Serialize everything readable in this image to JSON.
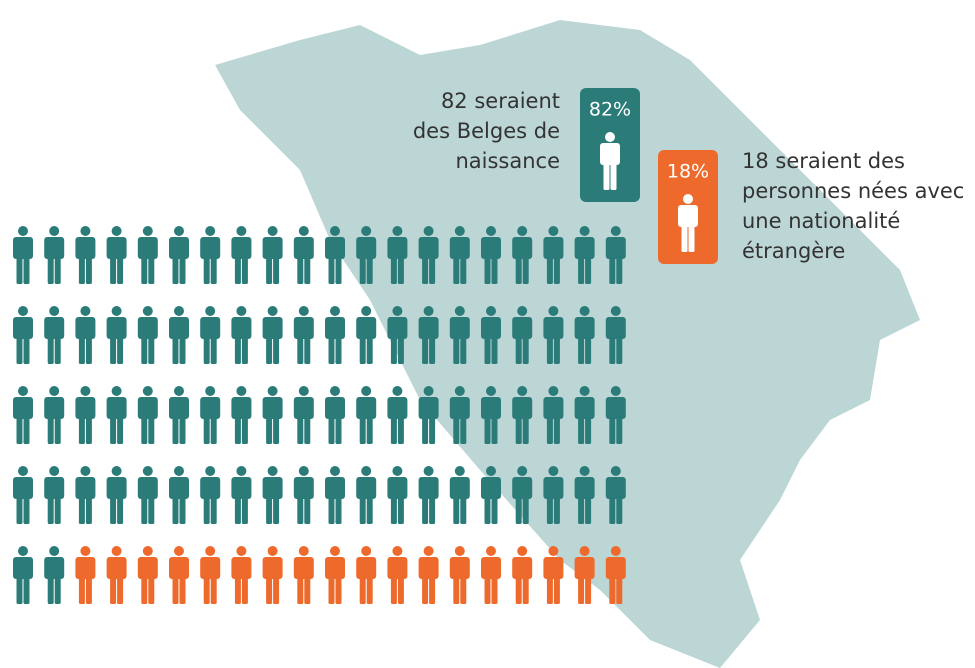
{
  "chart_data": {
    "type": "pictogram",
    "categories": [
      "82 seraient des Belges de naissance",
      "18 seraient des personnes nées avec une nationalité étrangère"
    ],
    "values": [
      82,
      18
    ],
    "value_labels": [
      "82%",
      "18%"
    ],
    "colors": [
      "#2b7c78",
      "#ee6a2c"
    ]
  }
}
